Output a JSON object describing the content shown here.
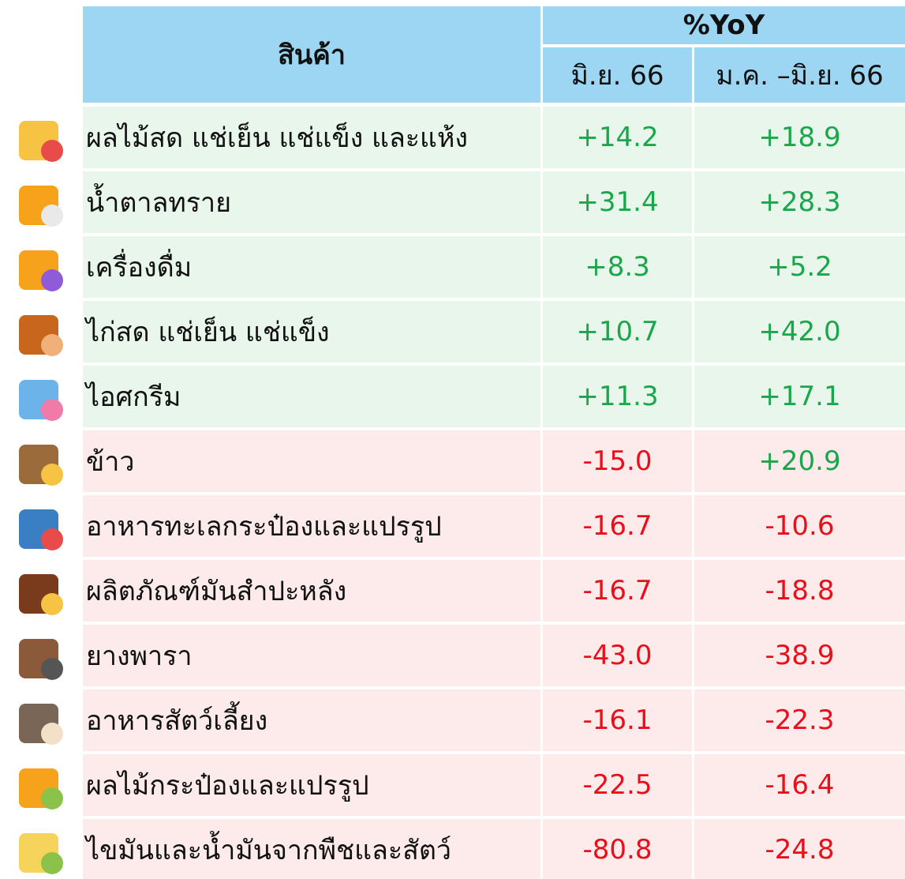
{
  "header": {
    "product": "สินค้า",
    "yoy": "%YoY",
    "col1": "มิ.ย. 66",
    "col2": "ม.ค. –มิ.ย. 66"
  },
  "colors": {
    "header": "#9dd6f2",
    "positive_row": "#e9f6ec",
    "negative_row": "#fdebeb",
    "positive_text": "#1aa64a",
    "negative_text": "#ea0d1a"
  },
  "table": {
    "rows": [
      [
        "ผลไม้สด แช่เย็น แช่แข็ง และแห้ง",
        "+14.2",
        "+18.9"
      ],
      [
        "น้ำตาลทราย",
        "+31.4",
        "+28.3"
      ],
      [
        "เครื่องดื่ม",
        "+8.3",
        "+5.2"
      ],
      [
        "ไก่สด แช่เย็น แช่แข็ง",
        "+10.7",
        "+42.0"
      ],
      [
        "ไอศกรีม",
        "+11.3",
        "+17.1"
      ],
      [
        "ข้าว",
        "-15.0",
        "+20.9"
      ],
      [
        "อาหารทะเลกระป๋องและแปรรูป",
        "-16.7",
        "-10.6"
      ],
      [
        "ผลิตภัณฑ์มันสำปะหลัง",
        "-16.7",
        "-18.8"
      ],
      [
        "ยางพารา",
        "-43.0",
        "-38.9"
      ],
      [
        "อาหารสัตว์เลี้ยง",
        "-16.1",
        "-22.3"
      ],
      [
        "ผลไม้กระป๋องและแปรรูป",
        "-22.5",
        "-16.4"
      ],
      [
        "ไขมันและน้ำมันจากพืชและสัตว์",
        "-80.8",
        "-24.8"
      ]
    ]
  }
}
